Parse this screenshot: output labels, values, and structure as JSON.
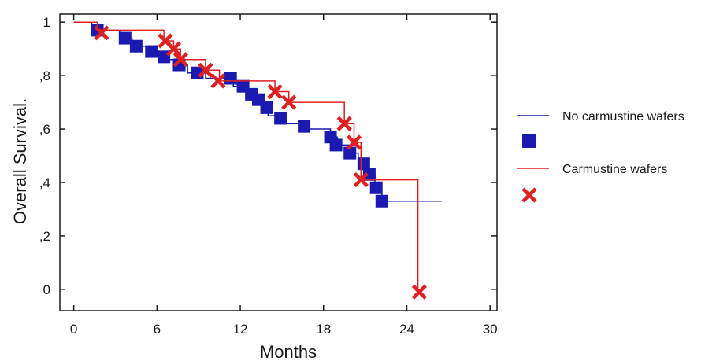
{
  "chart_data": {
    "type": "line",
    "subtype": "kaplan-meier",
    "title": "",
    "xlabel": "Months",
    "ylabel": "Overall Survival.",
    "xlim": [
      -1,
      30.5
    ],
    "ylim": [
      -0.08,
      1.03
    ],
    "xticks": [
      0,
      6,
      12,
      18,
      24,
      30
    ],
    "xtick_labels": [
      "0",
      "6",
      "12",
      "18",
      "24",
      "30"
    ],
    "yticks": [
      0,
      0.2,
      0.4,
      0.6,
      0.8,
      1
    ],
    "ytick_labels": [
      "0",
      ",2",
      ",4",
      ",6",
      ",8",
      "1"
    ],
    "grid": false,
    "legend_position": "right",
    "series": [
      {
        "name": "No carmustine wafers",
        "color": "#1a1ab0",
        "step_x": [
          0,
          1.3,
          1.3,
          3.3,
          3.3,
          4.2,
          4.2,
          5.5,
          5.5,
          6.3,
          6.3,
          7.3,
          7.3,
          8.2,
          8.2,
          9.5,
          9.5,
          11.5,
          11.5,
          12.5,
          12.5,
          13.0,
          13.0,
          13.5,
          13.5,
          14.0,
          14.0,
          15.0,
          15.0,
          16.5,
          16.5,
          18.5,
          18.5,
          19.0,
          19.0,
          20.0,
          20.0,
          20.5,
          20.5,
          21.2,
          21.2,
          21.7,
          21.7,
          22.2,
          22.2,
          26.5
        ],
        "step_y": [
          1.0,
          1.0,
          0.97,
          0.97,
          0.94,
          0.94,
          0.91,
          0.91,
          0.88,
          0.88,
          0.86,
          0.86,
          0.84,
          0.84,
          0.81,
          0.81,
          0.79,
          0.79,
          0.76,
          0.76,
          0.73,
          0.73,
          0.7,
          0.7,
          0.67,
          0.67,
          0.65,
          0.65,
          0.62,
          0.62,
          0.6,
          0.6,
          0.57,
          0.57,
          0.54,
          0.54,
          0.51,
          0.51,
          0.47,
          0.47,
          0.43,
          0.43,
          0.38,
          0.38,
          0.33,
          0.33
        ],
        "markers": "square",
        "marker_points": [
          [
            1.7,
            0.97
          ],
          [
            3.7,
            0.94
          ],
          [
            4.5,
            0.91
          ],
          [
            5.6,
            0.89
          ],
          [
            6.5,
            0.87
          ],
          [
            7.6,
            0.84
          ],
          [
            8.9,
            0.81
          ],
          [
            11.3,
            0.79
          ],
          [
            12.2,
            0.76
          ],
          [
            12.8,
            0.73
          ],
          [
            13.3,
            0.71
          ],
          [
            13.9,
            0.68
          ],
          [
            14.9,
            0.64
          ],
          [
            16.6,
            0.61
          ],
          [
            18.5,
            0.57
          ],
          [
            18.9,
            0.54
          ],
          [
            19.9,
            0.51
          ],
          [
            20.9,
            0.47
          ],
          [
            21.3,
            0.43
          ],
          [
            21.8,
            0.38
          ],
          [
            22.2,
            0.33
          ]
        ]
      },
      {
        "name": "Carmustine wafers",
        "color": "#e02020",
        "step_x": [
          0,
          1.7,
          1.7,
          6.5,
          6.5,
          7.2,
          7.2,
          7.7,
          7.7,
          9.5,
          9.5,
          10.5,
          10.5,
          14.5,
          14.5,
          15.5,
          15.5,
          19.5,
          19.5,
          20.2,
          20.2,
          20.7,
          20.7,
          24.8,
          24.8
        ],
        "step_y": [
          1.0,
          1.0,
          0.97,
          0.97,
          0.93,
          0.93,
          0.9,
          0.9,
          0.86,
          0.86,
          0.82,
          0.82,
          0.78,
          0.78,
          0.74,
          0.74,
          0.7,
          0.7,
          0.62,
          0.62,
          0.55,
          0.55,
          0.41,
          0.41,
          0.0
        ],
        "markers": "x",
        "marker_points": [
          [
            2.0,
            0.96
          ],
          [
            6.6,
            0.93
          ],
          [
            7.2,
            0.9
          ],
          [
            7.7,
            0.86
          ],
          [
            9.5,
            0.82
          ],
          [
            10.4,
            0.78
          ],
          [
            14.5,
            0.74
          ],
          [
            15.5,
            0.7
          ],
          [
            19.5,
            0.62
          ],
          [
            20.2,
            0.55
          ],
          [
            20.7,
            0.41
          ],
          [
            24.9,
            -0.01
          ]
        ]
      }
    ]
  }
}
